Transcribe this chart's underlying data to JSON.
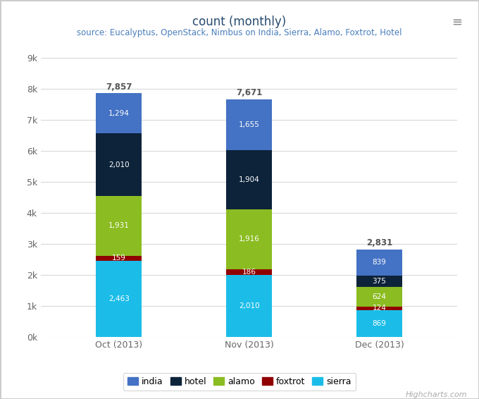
{
  "title": "count (monthly)",
  "subtitle": "source: Eucalyptus, OpenStack, Nimbus on India, Sierra, Alamo, Foxtrot, Hotel",
  "categories": [
    "Oct (2013)",
    "Nov (2013)",
    "Dec (2013)"
  ],
  "series": {
    "sierra": [
      2463,
      2010,
      869
    ],
    "foxtrot": [
      159,
      186,
      124
    ],
    "alamo": [
      1931,
      1916,
      624
    ],
    "hotel": [
      2010,
      1904,
      375
    ],
    "india": [
      1294,
      1655,
      839
    ]
  },
  "totals": [
    7857,
    7671,
    2831
  ],
  "colors": {
    "india": "#4472C4",
    "hotel": "#0D233A",
    "alamo": "#8BBC21",
    "foxtrot": "#910000",
    "sierra": "#1BBDE8"
  },
  "bar_order": [
    "sierra",
    "foxtrot",
    "alamo",
    "hotel",
    "india"
  ],
  "ylim": [
    0,
    9000
  ],
  "yticks": [
    0,
    1000,
    2000,
    3000,
    4000,
    5000,
    6000,
    7000,
    8000,
    9000
  ],
  "yticklabels": [
    "0k",
    "1k",
    "2k",
    "3k",
    "4k",
    "5k",
    "6k",
    "7k",
    "8k",
    "9k"
  ],
  "bg_color": "#FFFFFF",
  "plot_bg_color": "#FFFFFF",
  "grid_color": "#D8D8D8",
  "title_color": "#274B6D",
  "subtitle_color": "#4A7EBB",
  "tick_color": "#666666",
  "bar_width": 0.35,
  "legend_labels": [
    "india",
    "hotel",
    "alamo",
    "foxtrot",
    "sierra"
  ],
  "legend_colors": [
    "#4472C4",
    "#0D233A",
    "#8BBC21",
    "#910000",
    "#1BBDE8"
  ],
  "highcharts_text": "Highcharts.com"
}
